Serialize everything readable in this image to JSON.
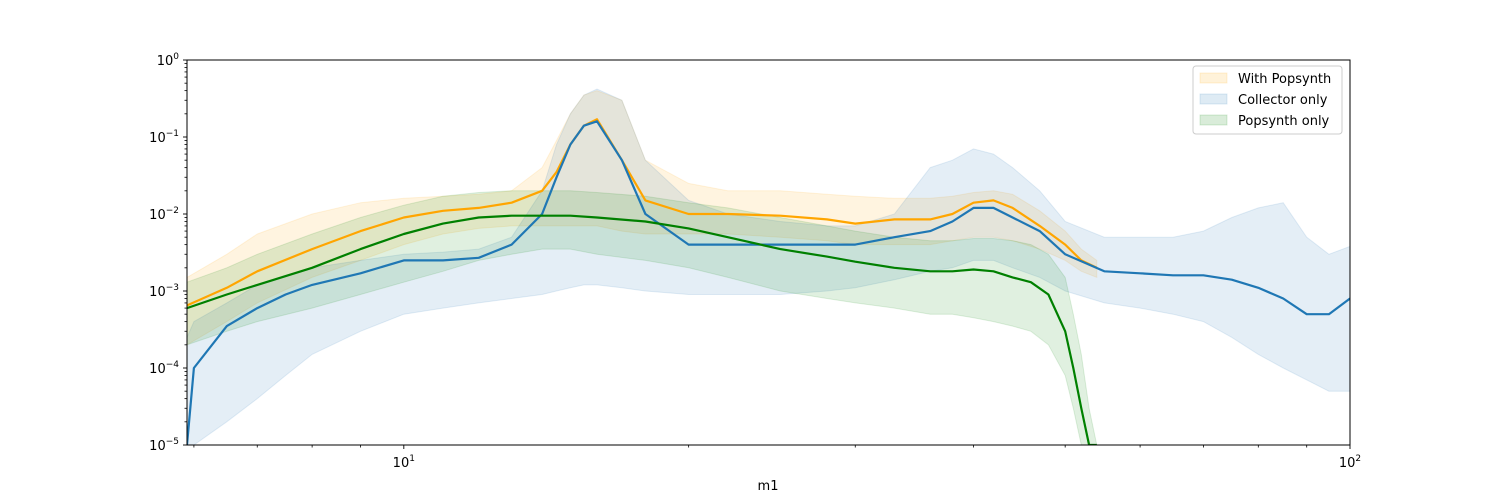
{
  "chart_data": {
    "type": "line",
    "xlabel": "m1",
    "ylabel": "",
    "x_scale": "log",
    "y_scale": "log",
    "xlim": [
      5.9,
      100
    ],
    "ylim": [
      1e-05,
      1
    ],
    "x_ticks": [
      {
        "value": 10,
        "label": "10",
        "base": "10",
        "exp": "1"
      },
      {
        "value": 100,
        "label": "100",
        "base": "10",
        "exp": "2"
      }
    ],
    "y_ticks": [
      {
        "value": 1e-05,
        "base": "10",
        "exp": "−5"
      },
      {
        "value": 0.0001,
        "base": "10",
        "exp": "−4"
      },
      {
        "value": 0.001,
        "base": "10",
        "exp": "−3"
      },
      {
        "value": 0.01,
        "base": "10",
        "exp": "−2"
      },
      {
        "value": 0.1,
        "base": "10",
        "exp": "−1"
      },
      {
        "value": 1,
        "base": "10",
        "exp": "0"
      }
    ],
    "legend_position": "top-right",
    "legend": [
      "With Popsynth",
      "Collector only",
      "Popsynth only"
    ],
    "series": [
      {
        "name": "With Popsynth",
        "color": "#ffa500",
        "x": [
          5.9,
          6.5,
          7,
          8,
          9,
          10,
          11,
          12,
          13,
          14,
          14.5,
          15,
          15.5,
          16,
          17,
          18,
          20,
          22,
          25,
          28,
          30,
          33,
          36,
          38,
          40,
          42,
          44,
          47,
          50,
          52,
          54
        ],
        "y": [
          0.00065,
          0.0011,
          0.0018,
          0.0035,
          0.006,
          0.009,
          0.011,
          0.012,
          0.014,
          0.02,
          0.035,
          0.08,
          0.14,
          0.17,
          0.05,
          0.015,
          0.01,
          0.01,
          0.0095,
          0.0085,
          0.0075,
          0.0085,
          0.0085,
          0.01,
          0.014,
          0.015,
          0.012,
          0.007,
          0.004,
          0.0025,
          0.002
        ],
        "band_upper": [
          0.0015,
          0.003,
          0.0055,
          0.01,
          0.014,
          0.016,
          0.017,
          0.018,
          0.02,
          0.04,
          0.09,
          0.2,
          0.35,
          0.4,
          0.3,
          0.05,
          0.025,
          0.02,
          0.02,
          0.018,
          0.017,
          0.016,
          0.016,
          0.017,
          0.019,
          0.02,
          0.018,
          0.011,
          0.006,
          0.0035,
          0.0025
        ],
        "band_lower": [
          0.0002,
          0.0004,
          0.0007,
          0.0015,
          0.0025,
          0.004,
          0.0055,
          0.0065,
          0.007,
          0.007,
          0.007,
          0.007,
          0.007,
          0.007,
          0.006,
          0.0055,
          0.0055,
          0.0055,
          0.005,
          0.0045,
          0.004,
          0.004,
          0.004,
          0.0045,
          0.005,
          0.005,
          0.0045,
          0.0035,
          0.0025,
          0.0018,
          0.0015
        ]
      },
      {
        "name": "Collector only",
        "color": "#1f77b4",
        "x": [
          5.9,
          6,
          6.5,
          7,
          7.5,
          8,
          9,
          10,
          11,
          12,
          13,
          14,
          14.5,
          15,
          15.5,
          16,
          17,
          18,
          20,
          22,
          25,
          28,
          30,
          33,
          36,
          38,
          40,
          42,
          44,
          47,
          50,
          55,
          60,
          65,
          70,
          75,
          80,
          85,
          90,
          95,
          100
        ],
        "y": [
          1e-05,
          0.0001,
          0.00035,
          0.0006,
          0.0009,
          0.0012,
          0.0017,
          0.0025,
          0.0025,
          0.0027,
          0.004,
          0.01,
          0.03,
          0.08,
          0.14,
          0.16,
          0.05,
          0.01,
          0.004,
          0.004,
          0.004,
          0.004,
          0.004,
          0.005,
          0.006,
          0.008,
          0.012,
          0.012,
          0.009,
          0.006,
          0.003,
          0.0018,
          0.0017,
          0.0016,
          0.0016,
          0.0014,
          0.0011,
          0.0008,
          0.0005,
          0.0005,
          0.0008
        ],
        "band_upper": [
          0.00025,
          0.0004,
          0.0007,
          0.0012,
          0.0016,
          0.002,
          0.0025,
          0.003,
          0.0032,
          0.0035,
          0.005,
          0.02,
          0.08,
          0.2,
          0.35,
          0.42,
          0.3,
          0.05,
          0.015,
          0.01,
          0.008,
          0.007,
          0.007,
          0.01,
          0.04,
          0.05,
          0.07,
          0.06,
          0.04,
          0.02,
          0.008,
          0.005,
          0.005,
          0.005,
          0.006,
          0.009,
          0.012,
          0.014,
          0.005,
          0.003,
          0.0038
        ],
        "band_lower": [
          1e-05,
          1e-05,
          2e-05,
          4e-05,
          8e-05,
          0.00015,
          0.0003,
          0.0005,
          0.0006,
          0.0007,
          0.0008,
          0.0009,
          0.001,
          0.0011,
          0.0012,
          0.0012,
          0.0011,
          0.001,
          0.0009,
          0.0009,
          0.0009,
          0.001,
          0.0011,
          0.0014,
          0.0018,
          0.002,
          0.0025,
          0.0025,
          0.002,
          0.0015,
          0.001,
          0.0007,
          0.0006,
          0.0005,
          0.0004,
          0.00025,
          0.00015,
          0.0001,
          7e-05,
          5e-05,
          5e-05
        ]
      },
      {
        "name": "Popsynth only",
        "color": "#008000",
        "x": [
          5.9,
          6.5,
          7,
          8,
          9,
          10,
          11,
          12,
          13,
          14,
          15,
          16,
          18,
          20,
          22,
          25,
          28,
          30,
          33,
          36,
          38,
          40,
          42,
          44,
          46,
          48,
          50,
          51,
          52,
          53,
          54
        ],
        "y": [
          0.0006,
          0.0009,
          0.0012,
          0.002,
          0.0035,
          0.0055,
          0.0075,
          0.009,
          0.0095,
          0.0095,
          0.0095,
          0.009,
          0.008,
          0.0065,
          0.005,
          0.0035,
          0.0028,
          0.0024,
          0.002,
          0.0018,
          0.0018,
          0.0019,
          0.0018,
          0.0015,
          0.0013,
          0.0009,
          0.0003,
          0.0001,
          3e-05,
          1e-05,
          1e-05
        ],
        "band_upper": [
          0.0013,
          0.002,
          0.003,
          0.0055,
          0.009,
          0.013,
          0.017,
          0.019,
          0.02,
          0.02,
          0.02,
          0.019,
          0.017,
          0.014,
          0.012,
          0.009,
          0.007,
          0.006,
          0.005,
          0.0045,
          0.0045,
          0.0048,
          0.0048,
          0.0045,
          0.004,
          0.003,
          0.0015,
          0.0005,
          0.00015,
          3e-05,
          1e-05
        ],
        "band_lower": [
          0.0002,
          0.0003,
          0.0004,
          0.0006,
          0.0009,
          0.0013,
          0.0018,
          0.0025,
          0.003,
          0.0035,
          0.0035,
          0.003,
          0.0025,
          0.002,
          0.0015,
          0.001,
          0.0008,
          0.0007,
          0.0006,
          0.0005,
          0.0005,
          0.00045,
          0.0004,
          0.00035,
          0.0003,
          0.0002,
          8e-05,
          3e-05,
          1e-05,
          1e-05,
          1e-05
        ]
      }
    ]
  }
}
